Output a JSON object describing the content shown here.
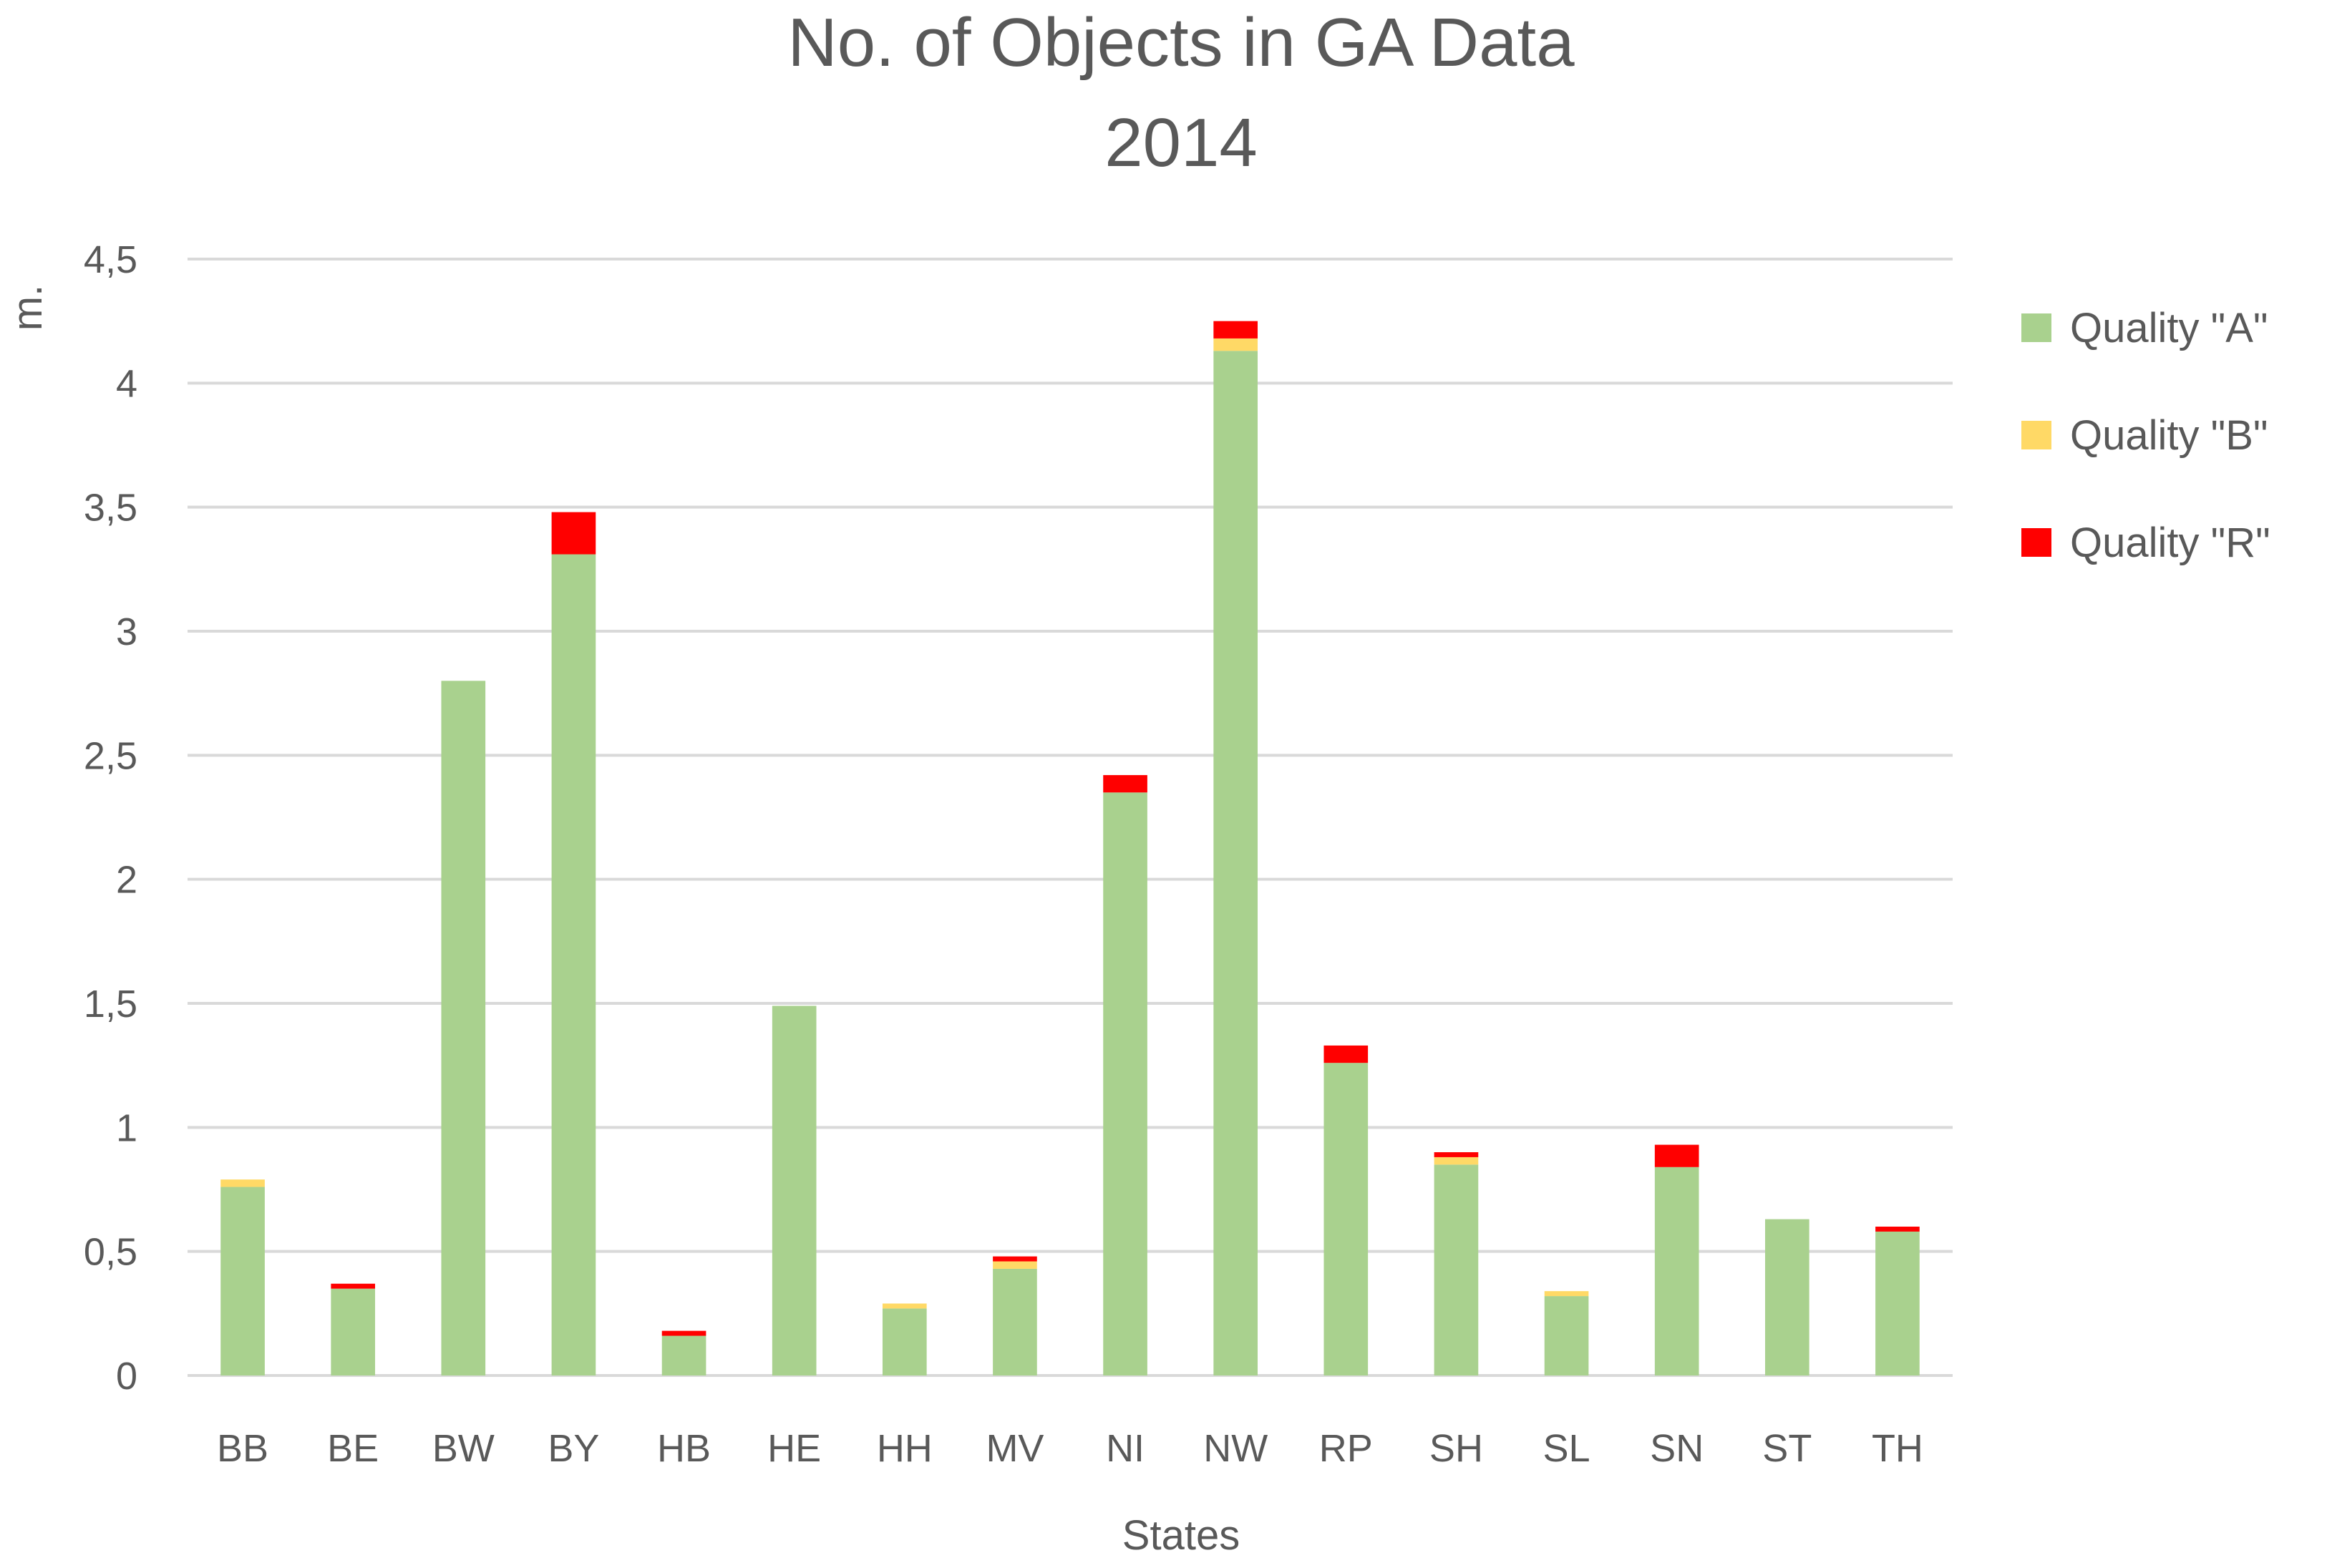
{
  "chart_data": {
    "type": "bar",
    "stacked": true,
    "title": "No. of Objects in GA Data",
    "subtitle": "2014",
    "xlabel": "States",
    "ylabel": "m.",
    "ylim": [
      0,
      4.5
    ],
    "yticks": [
      "0",
      "0,5",
      "1",
      "1,5",
      "2",
      "2,5",
      "3",
      "3,5",
      "4",
      "4,5"
    ],
    "grid": true,
    "legend_position": "right",
    "categories": [
      "BB",
      "BE",
      "BW",
      "BY",
      "HB",
      "HE",
      "HH",
      "MV",
      "NI",
      "NW",
      "RP",
      "SH",
      "SL",
      "SN",
      "ST",
      "TH"
    ],
    "series": [
      {
        "name": "Quality \"A\"",
        "color": "#a9d18e",
        "values": [
          0.76,
          0.35,
          2.8,
          3.31,
          0.16,
          1.49,
          0.27,
          0.43,
          2.35,
          4.13,
          1.26,
          0.85,
          0.32,
          0.84,
          0.63,
          0.58
        ]
      },
      {
        "name": "Quality \"B\"",
        "color": "#ffd966",
        "values": [
          0.03,
          0.0,
          0.0,
          0.0,
          0.0,
          0.0,
          0.02,
          0.03,
          0.0,
          0.05,
          0.0,
          0.03,
          0.02,
          0.0,
          0.0,
          0.0
        ]
      },
      {
        "name": "Quality \"R\"",
        "color": "#ff0000",
        "values": [
          0.0,
          0.02,
          0.0,
          0.17,
          0.02,
          0.0,
          0.0,
          0.02,
          0.07,
          0.07,
          0.07,
          0.02,
          0.0,
          0.09,
          0.0,
          0.02
        ]
      }
    ]
  }
}
